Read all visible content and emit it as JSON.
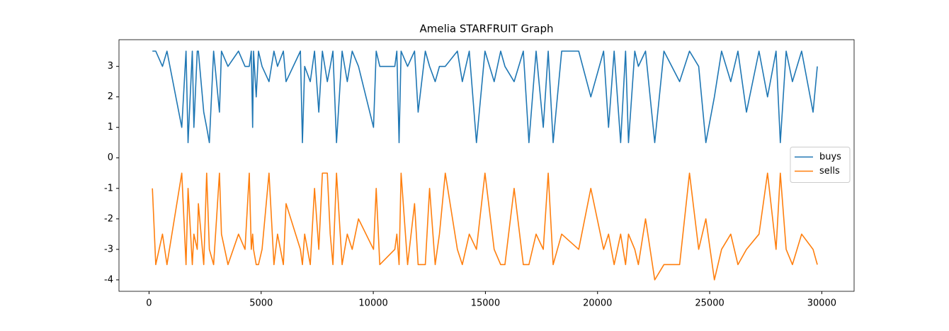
{
  "chart_data": {
    "type": "line",
    "title": "Amelia STARFRUIT Graph",
    "x": [
      150,
      300,
      600,
      800,
      1460,
      1650,
      1740,
      1930,
      2000,
      2150,
      2200,
      2440,
      2570,
      2690,
      2880,
      3140,
      3230,
      3520,
      3990,
      4280,
      4470,
      4560,
      4620,
      4660,
      4780,
      4880,
      5040,
      5350,
      5570,
      5730,
      5990,
      6110,
      6750,
      6840,
      6940,
      7190,
      7380,
      7570,
      7730,
      7950,
      8080,
      8200,
      8360,
      8610,
      8840,
      9060,
      9340,
      10010,
      10130,
      10290,
      10960,
      11050,
      11150,
      11240,
      11530,
      11840,
      12000,
      12320,
      12510,
      12760,
      12950,
      13210,
      13750,
      13970,
      14280,
      14600,
      14980,
      15390,
      15680,
      15870,
      16280,
      16690,
      16940,
      17260,
      17580,
      17800,
      18020,
      18400,
      19160,
      19700,
      20270,
      20490,
      20740,
      21030,
      21250,
      21380,
      21660,
      21820,
      22140,
      22550,
      22960,
      23660,
      24100,
      24510,
      24830,
      25210,
      25530,
      25940,
      26260,
      26640,
      27200,
      27580,
      27960,
      28150,
      28410,
      28690,
      29100,
      29610,
      29800
    ],
    "series": [
      {
        "name": "buys",
        "color": "#1f77b4",
        "values": [
          3.5,
          3.5,
          3.0,
          3.5,
          1.0,
          3.5,
          0.5,
          3.5,
          1.0,
          3.5,
          3.5,
          1.5,
          1.0,
          0.5,
          3.5,
          1.5,
          3.5,
          3.0,
          3.5,
          3.0,
          3.0,
          3.5,
          1.0,
          3.5,
          2.0,
          3.5,
          3.0,
          2.5,
          3.5,
          3.0,
          3.5,
          2.5,
          3.5,
          0.5,
          3.0,
          2.5,
          3.5,
          1.5,
          3.5,
          2.5,
          3.0,
          3.5,
          0.5,
          3.5,
          2.5,
          3.5,
          3.0,
          1.0,
          3.5,
          3.0,
          3.0,
          3.5,
          0.5,
          3.5,
          3.0,
          3.5,
          1.5,
          3.5,
          3.0,
          2.5,
          3.0,
          3.0,
          3.5,
          2.5,
          3.5,
          0.5,
          3.5,
          2.5,
          3.5,
          3.0,
          2.5,
          3.5,
          0.5,
          3.5,
          1.0,
          3.5,
          0.5,
          3.5,
          3.5,
          2.0,
          3.5,
          1.0,
          3.5,
          0.5,
          3.5,
          0.5,
          3.5,
          3.0,
          3.5,
          0.5,
          3.5,
          2.5,
          3.5,
          3.0,
          0.5,
          2.0,
          3.5,
          2.5,
          3.5,
          1.5,
          3.5,
          2.0,
          3.5,
          0.5,
          3.5,
          2.5,
          3.5,
          1.5,
          3.0
        ]
      },
      {
        "name": "sells",
        "color": "#ff7f0e",
        "values": [
          -1.0,
          -3.5,
          -2.5,
          -3.5,
          -0.5,
          -3.5,
          -1.0,
          -3.5,
          -2.5,
          -3.0,
          -1.5,
          -3.5,
          -0.5,
          -3.0,
          -3.5,
          -0.5,
          -2.5,
          -3.5,
          -2.5,
          -3.0,
          -0.5,
          -3.0,
          -2.5,
          -3.0,
          -3.5,
          -3.5,
          -3.0,
          -0.5,
          -3.5,
          -2.5,
          -3.5,
          -1.5,
          -3.0,
          -3.5,
          -2.5,
          -3.5,
          -1.0,
          -3.0,
          -0.5,
          -0.5,
          -2.5,
          -3.5,
          -0.5,
          -3.5,
          -2.5,
          -3.0,
          -2.0,
          -3.0,
          -1.0,
          -3.5,
          -3.0,
          -2.5,
          -3.5,
          -0.5,
          -3.5,
          -1.5,
          -3.5,
          -3.5,
          -1.0,
          -3.5,
          -2.5,
          -0.5,
          -3.0,
          -3.5,
          -2.5,
          -3.0,
          -0.5,
          -3.0,
          -3.5,
          -3.5,
          -1.0,
          -3.5,
          -3.5,
          -2.5,
          -3.0,
          -0.5,
          -3.5,
          -2.5,
          -3.0,
          -1.0,
          -3.0,
          -2.5,
          -3.5,
          -2.5,
          -3.5,
          -2.5,
          -3.0,
          -3.5,
          -2.0,
          -4.0,
          -3.5,
          -3.5,
          -0.5,
          -3.0,
          -2.0,
          -4.0,
          -3.0,
          -2.5,
          -3.5,
          -3.0,
          -2.5,
          -0.5,
          -3.0,
          -0.5,
          -3.0,
          -3.5,
          -2.5,
          -3.0,
          -3.5
        ]
      }
    ],
    "xlim": [
      -1340,
      31440
    ],
    "xticks": [
      0,
      5000,
      10000,
      15000,
      20000,
      25000,
      30000
    ],
    "ylim": [
      -4.375,
      3.875
    ],
    "yticks": [
      -4,
      -3,
      -2,
      -1,
      0,
      1,
      2,
      3
    ],
    "legend": "right"
  }
}
